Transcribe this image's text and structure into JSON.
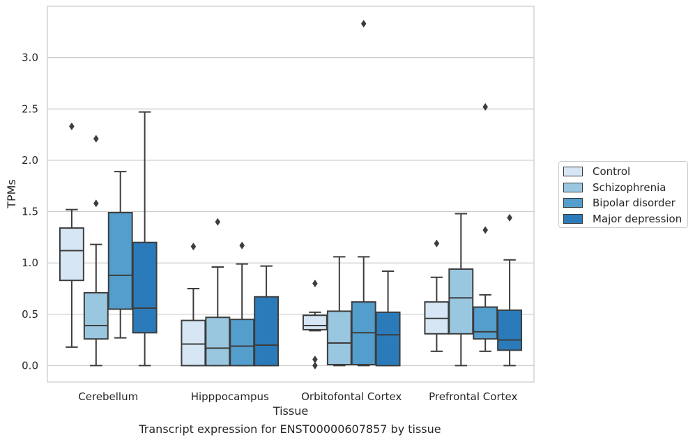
{
  "chart_data": {
    "type": "box",
    "caption": "Transcript expression for ENST00000607857 by tissue",
    "xlabel": "Tissue",
    "ylabel": "TPMs",
    "ylim": [
      -0.16,
      3.5
    ],
    "yticks": [
      0.0,
      0.5,
      1.0,
      1.5,
      2.0,
      2.5,
      3.0
    ],
    "ytick_labels": [
      "0.0",
      "0.5",
      "1.0",
      "1.5",
      "2.0",
      "2.5",
      "3.0"
    ],
    "grid": "horizontal",
    "legend_position": "right",
    "categories": [
      "Cerebellum",
      "Hipppocampus",
      "Orbitofontal Cortex",
      "Prefrontal Cortex"
    ],
    "series": [
      {
        "name": "Control",
        "color": "#d6e6f4",
        "boxes": [
          {
            "whislo": 0.18,
            "q1": 0.83,
            "med": 1.12,
            "q3": 1.34,
            "whishi": 1.52,
            "fliers": [
              2.33
            ]
          },
          {
            "whislo": 0.0,
            "q1": 0.0,
            "med": 0.21,
            "q3": 0.44,
            "whishi": 0.75,
            "fliers": [
              1.16
            ]
          },
          {
            "whislo": 0.34,
            "q1": 0.35,
            "med": 0.39,
            "q3": 0.49,
            "whishi": 0.52,
            "fliers": [
              0.8,
              0.06,
              0.0
            ]
          },
          {
            "whislo": 0.14,
            "q1": 0.31,
            "med": 0.46,
            "q3": 0.62,
            "whishi": 0.86,
            "fliers": [
              1.19
            ]
          }
        ]
      },
      {
        "name": "Schizophrenia",
        "color": "#9ac7e0",
        "boxes": [
          {
            "whislo": 0.0,
            "q1": 0.26,
            "med": 0.39,
            "q3": 0.71,
            "whishi": 1.18,
            "fliers": [
              2.21,
              1.58
            ]
          },
          {
            "whislo": 0.0,
            "q1": 0.0,
            "med": 0.17,
            "q3": 0.47,
            "whishi": 0.96,
            "fliers": [
              1.4
            ]
          },
          {
            "whislo": 0.0,
            "q1": 0.01,
            "med": 0.22,
            "q3": 0.53,
            "whishi": 1.06,
            "fliers": []
          },
          {
            "whislo": 0.0,
            "q1": 0.31,
            "med": 0.66,
            "q3": 0.94,
            "whishi": 1.48,
            "fliers": []
          }
        ]
      },
      {
        "name": "Bipolar disorder",
        "color": "#539ecd",
        "boxes": [
          {
            "whislo": 0.27,
            "q1": 0.55,
            "med": 0.88,
            "q3": 1.49,
            "whishi": 1.89,
            "fliers": []
          },
          {
            "whislo": 0.0,
            "q1": 0.0,
            "med": 0.19,
            "q3": 0.45,
            "whishi": 0.99,
            "fliers": [
              1.17
            ]
          },
          {
            "whislo": 0.0,
            "q1": 0.01,
            "med": 0.32,
            "q3": 0.62,
            "whishi": 1.06,
            "fliers": [
              3.33
            ]
          },
          {
            "whislo": 0.14,
            "q1": 0.26,
            "med": 0.33,
            "q3": 0.57,
            "whishi": 0.69,
            "fliers": [
              2.52,
              1.32
            ]
          }
        ]
      },
      {
        "name": "Major depression",
        "color": "#2b7bba",
        "boxes": [
          {
            "whislo": 0.0,
            "q1": 0.32,
            "med": 0.56,
            "q3": 1.2,
            "whishi": 2.47,
            "fliers": []
          },
          {
            "whislo": 0.0,
            "q1": 0.0,
            "med": 0.2,
            "q3": 0.67,
            "whishi": 0.97,
            "fliers": []
          },
          {
            "whislo": 0.0,
            "q1": 0.0,
            "med": 0.3,
            "q3": 0.52,
            "whishi": 0.92,
            "fliers": []
          },
          {
            "whislo": 0.0,
            "q1": 0.15,
            "med": 0.25,
            "q3": 0.54,
            "whishi": 1.03,
            "fliers": [
              1.44
            ]
          }
        ]
      }
    ]
  }
}
